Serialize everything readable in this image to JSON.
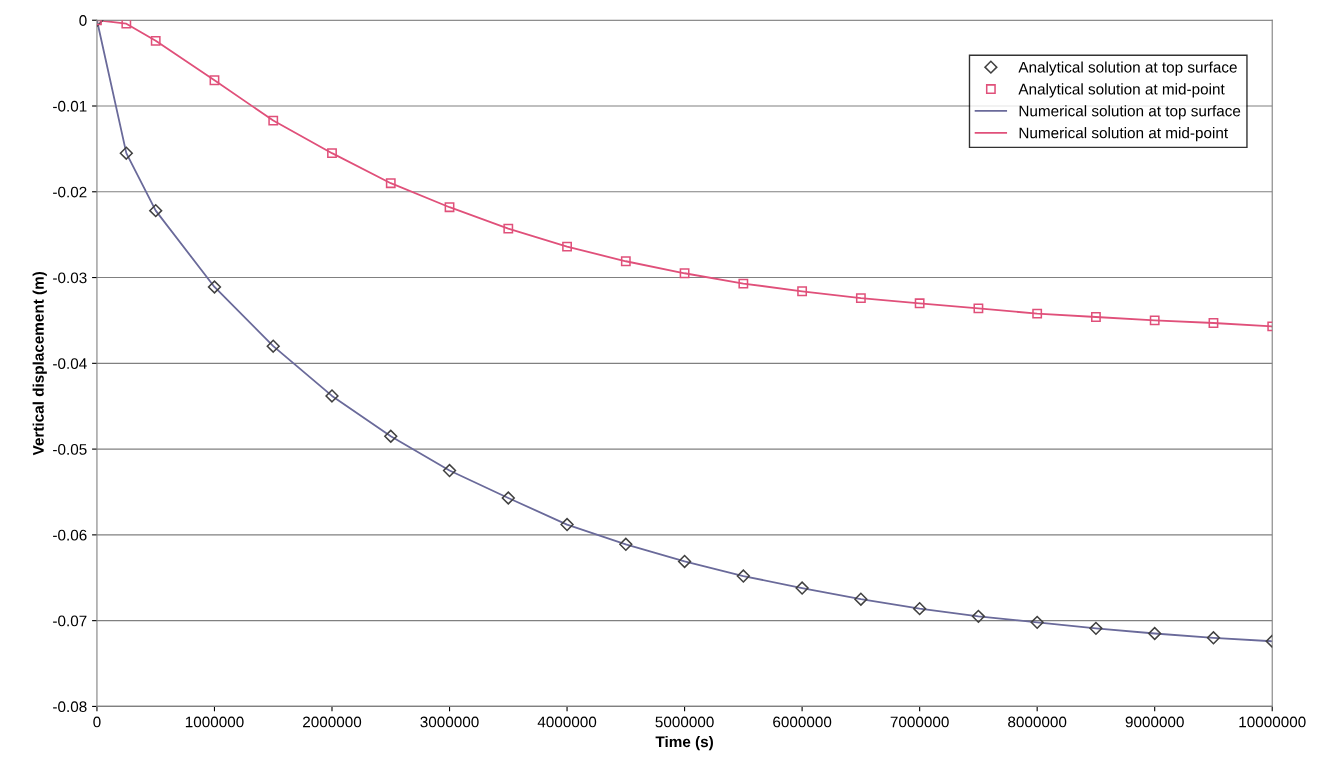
{
  "chart_data": {
    "type": "line",
    "xlabel": "Time (s)",
    "ylabel": "Vertical displacement (m)",
    "x": [
      0,
      250000,
      500000,
      1000000,
      1500000,
      2000000,
      2500000,
      3000000,
      3500000,
      4000000,
      4500000,
      5000000,
      5500000,
      6000000,
      6500000,
      7000000,
      7500000,
      8000000,
      8500000,
      9000000,
      9500000,
      10000000
    ],
    "series": [
      {
        "name": "Analytical solution at top surface",
        "type": "scatter",
        "marker": "diamond",
        "color": "#404040",
        "values": [
          0,
          -0.0155,
          -0.0222,
          -0.0311,
          -0.038,
          -0.0438,
          -0.0485,
          -0.0525,
          -0.0557,
          -0.0588,
          -0.0611,
          -0.0631,
          -0.0648,
          -0.0662,
          -0.0675,
          -0.0686,
          -0.0695,
          -0.0702,
          -0.0709,
          -0.0715,
          -0.072,
          -0.0724
        ]
      },
      {
        "name": "Analytical solution at mid-point",
        "type": "scatter",
        "marker": "square",
        "color": "#e0507a",
        "values": [
          0,
          -0.0004,
          -0.0024,
          -0.007,
          -0.0117,
          -0.0155,
          -0.019,
          -0.0218,
          -0.0243,
          -0.0264,
          -0.0281,
          -0.0295,
          -0.0307,
          -0.0316,
          -0.0324,
          -0.033,
          -0.0336,
          -0.0342,
          -0.0346,
          -0.035,
          -0.0353,
          -0.0357
        ]
      },
      {
        "name": "Numerical solution at top surface",
        "type": "line",
        "color": "#6a6a9a",
        "values": [
          0,
          -0.0155,
          -0.0222,
          -0.0311,
          -0.038,
          -0.0438,
          -0.0485,
          -0.0525,
          -0.0557,
          -0.0588,
          -0.0611,
          -0.0631,
          -0.0648,
          -0.0662,
          -0.0675,
          -0.0686,
          -0.0695,
          -0.0702,
          -0.0709,
          -0.0715,
          -0.072,
          -0.0724
        ]
      },
      {
        "name": "Numerical solution at mid-point",
        "type": "line",
        "color": "#e0507a",
        "values": [
          0,
          -0.0004,
          -0.0024,
          -0.007,
          -0.0117,
          -0.0155,
          -0.019,
          -0.0218,
          -0.0243,
          -0.0264,
          -0.0281,
          -0.0295,
          -0.0307,
          -0.0316,
          -0.0324,
          -0.033,
          -0.0336,
          -0.0342,
          -0.0346,
          -0.035,
          -0.0353,
          -0.0357
        ]
      }
    ],
    "xlim": [
      0,
      10000000
    ],
    "xticks": [
      0,
      1000000,
      2000000,
      3000000,
      4000000,
      5000000,
      6000000,
      7000000,
      8000000,
      9000000,
      10000000
    ],
    "ylim": [
      -0.08,
      0
    ],
    "yticks": [
      -0.08,
      -0.07,
      -0.06,
      -0.05,
      -0.04,
      -0.03,
      -0.02,
      -0.01,
      0
    ],
    "grid": "y",
    "legend": "top right"
  }
}
